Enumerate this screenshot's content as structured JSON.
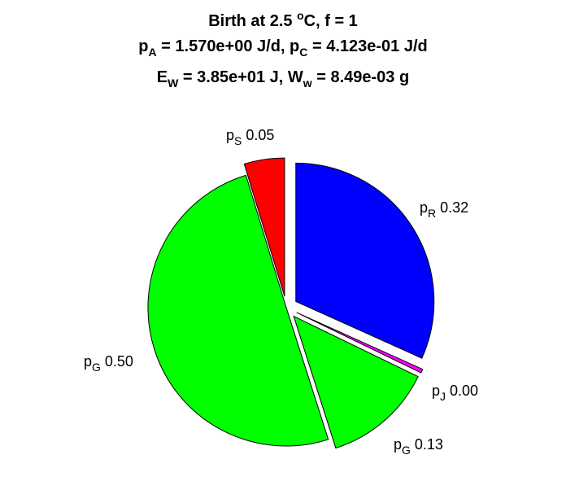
{
  "chart_data": {
    "type": "pie",
    "title_lines": [
      {
        "parts": [
          {
            "t": "Birth at 2.5 "
          },
          {
            "t": "o",
            "sup": true
          },
          {
            "t": "C, f = 1"
          }
        ]
      },
      {
        "parts": [
          {
            "t": "p"
          },
          {
            "t": "A",
            "sub": true
          },
          {
            "t": " = 1.570e+00 J/d, p"
          },
          {
            "t": "C",
            "sub": true
          },
          {
            "t": " = 4.123e-01 J/d"
          }
        ]
      },
      {
        "parts": [
          {
            "t": "E"
          },
          {
            "t": "W",
            "sub": true
          },
          {
            "t": " = 3.85e+01 J, W"
          },
          {
            "t": "w",
            "sub": true
          },
          {
            "t": " = 8.49e-03 g"
          }
        ]
      }
    ],
    "slices": [
      {
        "name": "p",
        "sub": "R",
        "value_label": "0.32",
        "value": 0.3173,
        "color": "#0000ff",
        "exploded": true
      },
      {
        "name": "p",
        "sub": "J",
        "value_label": "0.00",
        "value": 0.0045,
        "color": "#ff00ff",
        "exploded": true
      },
      {
        "name": "p",
        "sub": "G",
        "value_label": "0.13",
        "value": 0.129,
        "color": "#00ff00",
        "exploded": true
      },
      {
        "name": "p",
        "sub": "G",
        "value_label": "0.50",
        "value": 0.5021,
        "color": "#00ff00",
        "exploded": false
      },
      {
        "name": "p",
        "sub": "S",
        "value_label": "0.05",
        "value": 0.0471,
        "color": "#ff0000",
        "exploded": true
      }
    ],
    "direction": "clockwise",
    "start": "top"
  }
}
